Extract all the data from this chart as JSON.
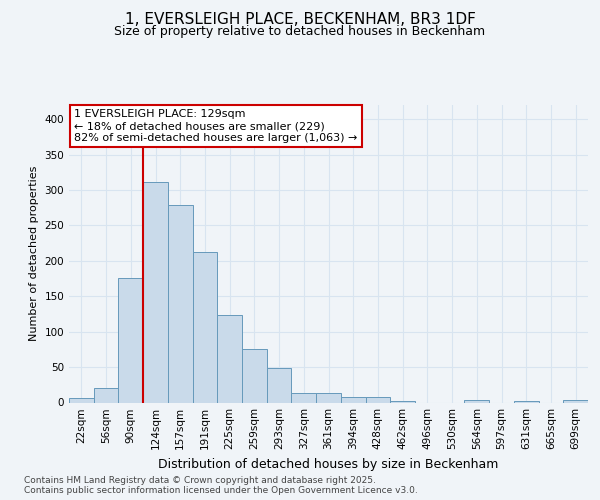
{
  "title_line1": "1, EVERSLEIGH PLACE, BECKENHAM, BR3 1DF",
  "title_line2": "Size of property relative to detached houses in Beckenham",
  "xlabel": "Distribution of detached houses by size in Beckenham",
  "ylabel": "Number of detached properties",
  "footer": "Contains HM Land Registry data © Crown copyright and database right 2025.\nContains public sector information licensed under the Open Government Licence v3.0.",
  "bin_labels": [
    "22sqm",
    "56sqm",
    "90sqm",
    "124sqm",
    "157sqm",
    "191sqm",
    "225sqm",
    "259sqm",
    "293sqm",
    "327sqm",
    "361sqm",
    "394sqm",
    "428sqm",
    "462sqm",
    "496sqm",
    "530sqm",
    "564sqm",
    "597sqm",
    "631sqm",
    "665sqm",
    "699sqm"
  ],
  "bar_heights": [
    7,
    21,
    176,
    311,
    279,
    213,
    124,
    76,
    49,
    14,
    14,
    8,
    8,
    2,
    0,
    0,
    3,
    0,
    2,
    0,
    3
  ],
  "bar_color": "#c9daea",
  "bar_edge_color": "#6699bb",
  "vline_x_idx": 3,
  "vline_color": "#cc0000",
  "annotation_text": "1 EVERSLEIGH PLACE: 129sqm\n← 18% of detached houses are smaller (229)\n82% of semi-detached houses are larger (1,063) →",
  "annotation_box_edgecolor": "#cc0000",
  "annotation_box_facecolor": "#ffffff",
  "ylim": [
    0,
    420
  ],
  "yticks": [
    0,
    50,
    100,
    150,
    200,
    250,
    300,
    350,
    400
  ],
  "background_color": "#f0f4f8",
  "grid_color": "#d8e4f0",
  "title1_fontsize": 11,
  "title2_fontsize": 9,
  "ylabel_fontsize": 8,
  "xlabel_fontsize": 9,
  "tick_fontsize": 7.5,
  "annot_fontsize": 8,
  "footer_fontsize": 6.5
}
